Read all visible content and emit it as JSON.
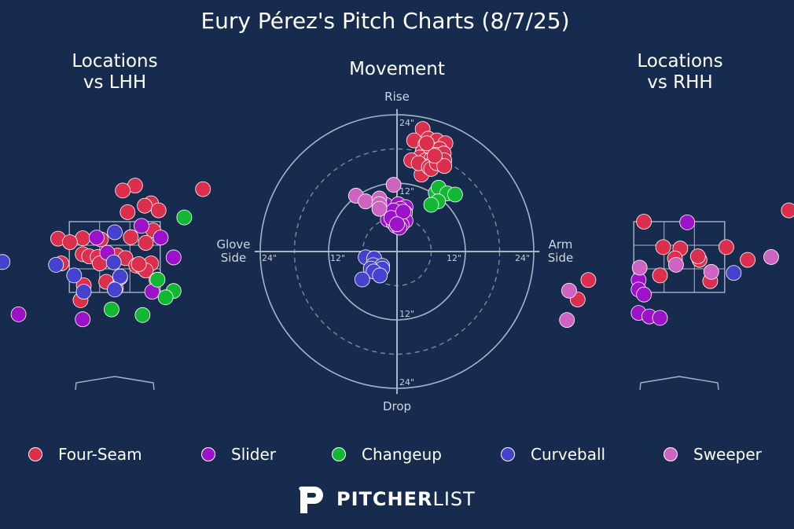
{
  "title": "Eury Pérez's Pitch Charts (8/7/25)",
  "brand": {
    "bold": "PITCHER",
    "light": "LIST"
  },
  "colors": {
    "background": "#162b4e",
    "Four-Seam": "#dc2f4d",
    "Slider": "#9b12c9",
    "Changeup": "#12b833",
    "Curveball": "#4442cf",
    "Sweeper": "#cf63c2",
    "frame": "#a9b4c4"
  },
  "legend": [
    "Four-Seam",
    "Slider",
    "Changeup",
    "Curveball",
    "Sweeper"
  ],
  "chart_data": [
    {
      "type": "scatter",
      "title": "Locations\nvs LHH",
      "xlabel": "",
      "ylabel": "",
      "points": [
        {
          "p": "Four-Seam",
          "x": 0.38,
          "y": 4.52
        },
        {
          "p": "Four-Seam",
          "x": 0.15,
          "y": 4.38
        },
        {
          "p": "Four-Seam",
          "x": 1.65,
          "y": 4.42
        },
        {
          "p": "Four-Seam",
          "x": 0.68,
          "y": 4.02
        },
        {
          "p": "Four-Seam",
          "x": 0.56,
          "y": 3.95
        },
        {
          "p": "Four-Seam",
          "x": 0.82,
          "y": 3.82
        },
        {
          "p": "Four-Seam",
          "x": 0.24,
          "y": 3.77
        },
        {
          "p": "Four-Seam",
          "x": 0.72,
          "y": 3.25
        },
        {
          "p": "Four-Seam",
          "x": -1.06,
          "y": 3.02
        },
        {
          "p": "Four-Seam",
          "x": -0.6,
          "y": 3.03
        },
        {
          "p": "Four-Seam",
          "x": -0.26,
          "y": 3.0
        },
        {
          "p": "Four-Seam",
          "x": 0.3,
          "y": 3.06
        },
        {
          "p": "Four-Seam",
          "x": -0.84,
          "y": 2.92
        },
        {
          "p": "Four-Seam",
          "x": 0.58,
          "y": 2.9
        },
        {
          "p": "Four-Seam",
          "x": -0.6,
          "y": 2.58
        },
        {
          "p": "Four-Seam",
          "x": -0.48,
          "y": 2.52
        },
        {
          "p": "Four-Seam",
          "x": 0.05,
          "y": 2.54
        },
        {
          "p": "Four-Seam",
          "x": -0.32,
          "y": 2.5
        },
        {
          "p": "Four-Seam",
          "x": 0.2,
          "y": 2.47
        },
        {
          "p": "Four-Seam",
          "x": -1.0,
          "y": 2.32
        },
        {
          "p": "Four-Seam",
          "x": -0.28,
          "y": 2.32
        },
        {
          "p": "Four-Seam",
          "x": 0.4,
          "y": 2.26
        },
        {
          "p": "Four-Seam",
          "x": 0.52,
          "y": 2.2
        },
        {
          "p": "Four-Seam",
          "x": 0.68,
          "y": 2.32
        },
        {
          "p": "Four-Seam",
          "x": 0.58,
          "y": 2.12
        },
        {
          "p": "Four-Seam",
          "x": 0.45,
          "y": 2.3
        },
        {
          "p": "Four-Seam",
          "x": 0.78,
          "y": 1.85
        },
        {
          "p": "Four-Seam",
          "x": -0.16,
          "y": 1.8
        },
        {
          "p": "Four-Seam",
          "x": -0.58,
          "y": 1.7
        },
        {
          "p": "Four-Seam",
          "x": 0.02,
          "y": 1.62
        },
        {
          "p": "Four-Seam",
          "x": -0.64,
          "y": 1.28
        },
        {
          "p": "Slider",
          "x": 0.5,
          "y": 3.38
        },
        {
          "p": "Slider",
          "x": -0.34,
          "y": 3.05
        },
        {
          "p": "Slider",
          "x": 0.86,
          "y": 3.05
        },
        {
          "p": "Slider",
          "x": -0.14,
          "y": 2.62
        },
        {
          "p": "Slider",
          "x": 1.1,
          "y": 2.49
        },
        {
          "p": "Slider",
          "x": 0.1,
          "y": 1.92
        },
        {
          "p": "Slider",
          "x": 0.7,
          "y": 1.52
        },
        {
          "p": "Slider",
          "x": -1.8,
          "y": 0.88
        },
        {
          "p": "Slider",
          "x": -0.6,
          "y": 0.74
        },
        {
          "p": "Changeup",
          "x": 1.3,
          "y": 3.62
        },
        {
          "p": "Changeup",
          "x": 0.8,
          "y": 1.86
        },
        {
          "p": "Changeup",
          "x": 1.1,
          "y": 1.54
        },
        {
          "p": "Changeup",
          "x": 0.95,
          "y": 1.36
        },
        {
          "p": "Changeup",
          "x": -0.06,
          "y": 1.02
        },
        {
          "p": "Changeup",
          "x": 0.52,
          "y": 0.86
        },
        {
          "p": "Curveball",
          "x": 0.0,
          "y": 3.2
        },
        {
          "p": "Curveball",
          "x": -2.1,
          "y": 2.36
        },
        {
          "p": "Curveball",
          "x": -0.02,
          "y": 2.35
        },
        {
          "p": "Curveball",
          "x": -1.1,
          "y": 2.28
        },
        {
          "p": "Curveball",
          "x": -0.76,
          "y": 1.98
        },
        {
          "p": "Curveball",
          "x": 0.1,
          "y": 1.95
        },
        {
          "p": "Curveball",
          "x": -0.58,
          "y": 1.52
        },
        {
          "p": "Curveball",
          "x": 0.0,
          "y": 1.58
        }
      ]
    },
    {
      "type": "scatter",
      "title": "Movement",
      "xlabel": "Glove\nSide",
      "xlabel2": "Arm\nSide",
      "ylabel": "Rise",
      "ylabel2": "Drop",
      "radial_ticks": [
        "12\"",
        "24\""
      ],
      "points": [
        {
          "p": "Four-Seam",
          "x": 4.5,
          "y": 21.5
        },
        {
          "p": "Four-Seam",
          "x": 3.0,
          "y": 19.5
        },
        {
          "p": "Four-Seam",
          "x": 5.5,
          "y": 19.8
        },
        {
          "p": "Four-Seam",
          "x": 7.0,
          "y": 19.5
        },
        {
          "p": "Four-Seam",
          "x": 8.5,
          "y": 19.0
        },
        {
          "p": "Four-Seam",
          "x": 5.0,
          "y": 18.8
        },
        {
          "p": "Four-Seam",
          "x": 6.0,
          "y": 18.0
        },
        {
          "p": "Four-Seam",
          "x": 7.5,
          "y": 18.0
        },
        {
          "p": "Four-Seam",
          "x": 4.5,
          "y": 17.5
        },
        {
          "p": "Four-Seam",
          "x": 5.5,
          "y": 17.2
        },
        {
          "p": "Four-Seam",
          "x": 6.8,
          "y": 17.0
        },
        {
          "p": "Four-Seam",
          "x": 8.2,
          "y": 17.2
        },
        {
          "p": "Four-Seam",
          "x": 4.0,
          "y": 16.5
        },
        {
          "p": "Four-Seam",
          "x": 5.0,
          "y": 16.0
        },
        {
          "p": "Four-Seam",
          "x": 6.0,
          "y": 16.2
        },
        {
          "p": "Four-Seam",
          "x": 7.2,
          "y": 16.0
        },
        {
          "p": "Four-Seam",
          "x": 8.3,
          "y": 16.0
        },
        {
          "p": "Four-Seam",
          "x": 2.5,
          "y": 16.0
        },
        {
          "p": "Four-Seam",
          "x": 4.2,
          "y": 15.2
        },
        {
          "p": "Four-Seam",
          "x": 5.5,
          "y": 15.0
        },
        {
          "p": "Four-Seam",
          "x": 6.6,
          "y": 15.2
        },
        {
          "p": "Four-Seam",
          "x": 4.3,
          "y": 13.5
        },
        {
          "p": "Four-Seam",
          "x": 3.8,
          "y": 15.5
        },
        {
          "p": "Four-Seam",
          "x": 5.6,
          "y": 14.8
        },
        {
          "p": "Four-Seam",
          "x": 6.0,
          "y": 14.5
        },
        {
          "p": "Four-Seam",
          "x": 7.0,
          "y": 15.5
        },
        {
          "p": "Four-Seam",
          "x": 8.3,
          "y": 15.0
        },
        {
          "p": "Four-Seam",
          "x": 6.6,
          "y": 16.8
        },
        {
          "p": "Four-Seam",
          "x": 5.2,
          "y": 19.0
        },
        {
          "p": "Changeup",
          "x": 6.8,
          "y": 10.3
        },
        {
          "p": "Changeup",
          "x": 7.3,
          "y": 11.2
        },
        {
          "p": "Changeup",
          "x": 8.8,
          "y": 10.2
        },
        {
          "p": "Changeup",
          "x": 10.2,
          "y": 10.0
        },
        {
          "p": "Changeup",
          "x": 7.2,
          "y": 8.8
        },
        {
          "p": "Changeup",
          "x": 6.0,
          "y": 8.2
        },
        {
          "p": "Slider",
          "x": -2.0,
          "y": 8.2
        },
        {
          "p": "Slider",
          "x": 0.2,
          "y": 8.3
        },
        {
          "p": "Slider",
          "x": 1.5,
          "y": 7.8
        },
        {
          "p": "Slider",
          "x": 0.6,
          "y": 7.5
        },
        {
          "p": "Slider",
          "x": -0.6,
          "y": 7.2
        },
        {
          "p": "Slider",
          "x": 1.4,
          "y": 6.8
        },
        {
          "p": "Slider",
          "x": -1.6,
          "y": 5.6
        },
        {
          "p": "Slider",
          "x": 0.5,
          "y": 5.8
        },
        {
          "p": "Slider",
          "x": 1.5,
          "y": 5.4
        },
        {
          "p": "Slider",
          "x": -0.6,
          "y": 5.0
        },
        {
          "p": "Slider",
          "x": 0.8,
          "y": 4.7
        },
        {
          "p": "Slider",
          "x": -0.2,
          "y": 4.5
        },
        {
          "p": "Slider",
          "x": 0.4,
          "y": 4.2
        },
        {
          "p": "Slider",
          "x": -1.0,
          "y": 5.9
        },
        {
          "p": "Slider",
          "x": 1.1,
          "y": 7.0
        },
        {
          "p": "Slider",
          "x": 0.0,
          "y": 4.8
        },
        {
          "p": "Sweeper",
          "x": -7.2,
          "y": 9.8
        },
        {
          "p": "Sweeper",
          "x": -5.5,
          "y": 8.8
        },
        {
          "p": "Sweeper",
          "x": -3.1,
          "y": 9.3
        },
        {
          "p": "Sweeper",
          "x": -3.1,
          "y": 8.3
        },
        {
          "p": "Sweeper",
          "x": -3.1,
          "y": 7.5
        },
        {
          "p": "Sweeper",
          "x": -0.6,
          "y": 11.7
        },
        {
          "p": "Curveball",
          "x": -5.5,
          "y": -1.0
        },
        {
          "p": "Curveball",
          "x": -4.0,
          "y": -1.2
        },
        {
          "p": "Curveball",
          "x": -4.2,
          "y": -2.4
        },
        {
          "p": "Curveball",
          "x": -2.6,
          "y": -2.5
        },
        {
          "p": "Curveball",
          "x": -2.6,
          "y": -3.0
        },
        {
          "p": "Curveball",
          "x": -4.6,
          "y": -3.0
        },
        {
          "p": "Curveball",
          "x": -4.1,
          "y": -3.5
        },
        {
          "p": "Curveball",
          "x": -3.0,
          "y": -4.2
        },
        {
          "p": "Curveball",
          "x": -6.1,
          "y": -4.9
        }
      ]
    },
    {
      "type": "scatter",
      "title": "Locations\nvs RHH",
      "xlabel": "",
      "ylabel": "",
      "points": [
        {
          "p": "Four-Seam",
          "x": 2.05,
          "y": 3.82
        },
        {
          "p": "Four-Seam",
          "x": -0.66,
          "y": 3.5
        },
        {
          "p": "Four-Seam",
          "x": -0.3,
          "y": 2.78
        },
        {
          "p": "Four-Seam",
          "x": 0.02,
          "y": 2.74
        },
        {
          "p": "Four-Seam",
          "x": 0.88,
          "y": 2.78
        },
        {
          "p": "Four-Seam",
          "x": -0.08,
          "y": 2.46
        },
        {
          "p": "Four-Seam",
          "x": 0.38,
          "y": 2.42
        },
        {
          "p": "Four-Seam",
          "x": 0.35,
          "y": 2.52
        },
        {
          "p": "Four-Seam",
          "x": 1.28,
          "y": 2.42
        },
        {
          "p": "Four-Seam",
          "x": -0.36,
          "y": 1.98
        },
        {
          "p": "Four-Seam",
          "x": -1.7,
          "y": 1.85
        },
        {
          "p": "Four-Seam",
          "x": 0.58,
          "y": 1.82
        },
        {
          "p": "Four-Seam",
          "x": -1.9,
          "y": 1.3
        },
        {
          "p": "Slider",
          "x": 0.15,
          "y": 3.48
        },
        {
          "p": "Slider",
          "x": -0.76,
          "y": 1.85
        },
        {
          "p": "Slider",
          "x": -0.76,
          "y": 1.58
        },
        {
          "p": "Slider",
          "x": -0.66,
          "y": 1.44
        },
        {
          "p": "Slider",
          "x": -0.76,
          "y": 0.92
        },
        {
          "p": "Slider",
          "x": -0.56,
          "y": 0.82
        },
        {
          "p": "Slider",
          "x": -0.36,
          "y": 0.78
        },
        {
          "p": "Sweeper",
          "x": 1.72,
          "y": 2.5
        },
        {
          "p": "Sweeper",
          "x": -0.74,
          "y": 2.2
        },
        {
          "p": "Sweeper",
          "x": -0.06,
          "y": 2.28
        },
        {
          "p": "Sweeper",
          "x": 0.6,
          "y": 2.08
        },
        {
          "p": "Sweeper",
          "x": -2.06,
          "y": 1.55
        },
        {
          "p": "Sweeper",
          "x": -2.1,
          "y": 0.72
        },
        {
          "p": "Curveball",
          "x": 1.02,
          "y": 2.05
        }
      ]
    }
  ]
}
